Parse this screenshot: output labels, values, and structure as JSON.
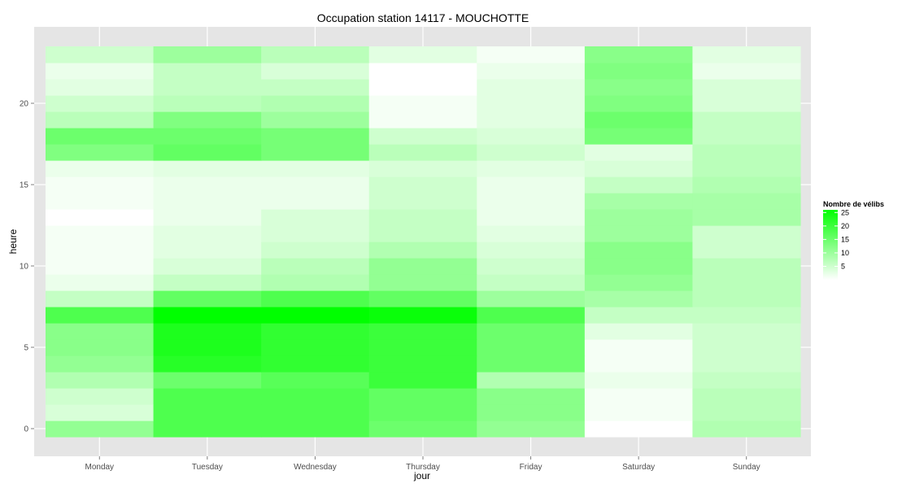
{
  "chart_data": {
    "type": "heatmap",
    "title": "Occupation station 14117 - MOUCHOTTE",
    "xlabel": "jour",
    "ylabel": "heure",
    "x": [
      "Monday",
      "Tuesday",
      "Wednesday",
      "Thursday",
      "Friday",
      "Saturday",
      "Sunday"
    ],
    "y": [
      0,
      1,
      2,
      3,
      4,
      5,
      6,
      7,
      8,
      9,
      10,
      11,
      12,
      13,
      14,
      15,
      16,
      17,
      18,
      19,
      20,
      21,
      22,
      23
    ],
    "y_ticks": [
      0,
      5,
      10,
      15,
      20
    ],
    "ylim": [
      -0.5,
      23.5
    ],
    "grid": true,
    "legend": {
      "title": "Nombre de vélibs",
      "position": "right",
      "breaks": [
        5,
        10,
        15,
        20,
        25
      ],
      "range": [
        0,
        26
      ],
      "low_color": "#ffffff",
      "high_color": "#00ff00"
    },
    "values": [
      [
        11,
        18,
        18,
        15,
        11,
        0,
        8
      ],
      [
        4,
        18,
        18,
        16,
        12,
        1,
        7
      ],
      [
        5,
        18,
        18,
        16,
        12,
        1,
        7
      ],
      [
        8,
        15,
        17,
        20,
        8,
        2,
        6
      ],
      [
        11,
        22,
        21,
        20,
        15,
        1,
        5
      ],
      [
        12,
        23,
        21,
        20,
        15,
        1,
        5
      ],
      [
        12,
        23,
        21,
        20,
        15,
        3,
        5
      ],
      [
        18,
        26,
        26,
        25,
        18,
        6,
        6
      ],
      [
        6,
        16,
        18,
        16,
        10,
        9,
        7
      ],
      [
        2,
        6,
        8,
        11,
        6,
        11,
        7
      ],
      [
        1,
        4,
        7,
        11,
        5,
        12,
        7
      ],
      [
        1,
        3,
        5,
        8,
        4,
        12,
        5
      ],
      [
        1,
        3,
        4,
        6,
        3,
        10,
        5
      ],
      [
        0,
        2,
        4,
        6,
        2,
        10,
        9
      ],
      [
        1,
        2,
        2,
        5,
        2,
        9,
        9
      ],
      [
        1,
        2,
        2,
        5,
        2,
        6,
        8
      ],
      [
        2,
        3,
        3,
        4,
        3,
        4,
        7
      ],
      [
        13,
        16,
        14,
        7,
        5,
        3,
        7
      ],
      [
        15,
        15,
        14,
        5,
        4,
        14,
        6
      ],
      [
        7,
        13,
        10,
        1,
        3,
        15,
        6
      ],
      [
        5,
        7,
        8,
        1,
        3,
        13,
        4
      ],
      [
        3,
        6,
        6,
        0,
        3,
        12,
        4
      ],
      [
        2,
        6,
        4,
        0,
        2,
        13,
        2
      ],
      [
        5,
        10,
        7,
        3,
        1,
        12,
        3
      ]
    ]
  }
}
